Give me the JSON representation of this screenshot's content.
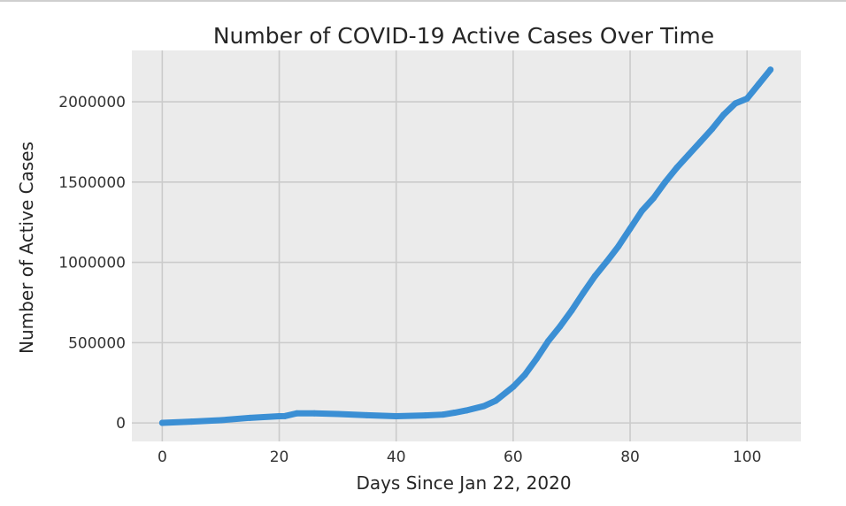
{
  "chart_data": {
    "type": "line",
    "title": "Number of COVID-19 Active Cases Over Time",
    "xlabel": "Days Since Jan 22, 2020",
    "ylabel": "Number of  Active Cases",
    "xlim": [
      -5.2,
      109.2
    ],
    "ylim": [
      -115000,
      2320000
    ],
    "xticks": [
      0,
      20,
      40,
      60,
      80,
      100
    ],
    "yticks": [
      0,
      500000,
      1000000,
      1500000,
      2000000
    ],
    "xtick_labels": [
      "0",
      "20",
      "40",
      "60",
      "80",
      "100"
    ],
    "ytick_labels": [
      "0",
      "500000",
      "1000000",
      "1500000",
      "2000000"
    ],
    "grid": true,
    "colors": {
      "background": "#ebebeb",
      "grid": "#cbcbcb",
      "line": "#3b8fd4",
      "text": "#262626",
      "tick_text": "#333333"
    },
    "series": [
      {
        "x": [
          0,
          5,
          10,
          15,
          20,
          21,
          23,
          26,
          30,
          35,
          40,
          45,
          48,
          50,
          52,
          55,
          57,
          60,
          62,
          64,
          66,
          68,
          70,
          72,
          74,
          76,
          78,
          80,
          82,
          84,
          86,
          88,
          90,
          92,
          94,
          96,
          98,
          100,
          102,
          104
        ],
        "values": [
          550,
          8000,
          17000,
          32000,
          42000,
          43000,
          60000,
          60000,
          56000,
          48000,
          42000,
          47000,
          52000,
          64000,
          78000,
          105000,
          138000,
          225000,
          300000,
          400000,
          510000,
          600000,
          700000,
          810000,
          915000,
          1005000,
          1100000,
          1210000,
          1320000,
          1400000,
          1500000,
          1590000,
          1670000,
          1750000,
          1830000,
          1920000,
          1990000,
          2020000,
          2110000,
          2200000
        ]
      }
    ]
  }
}
